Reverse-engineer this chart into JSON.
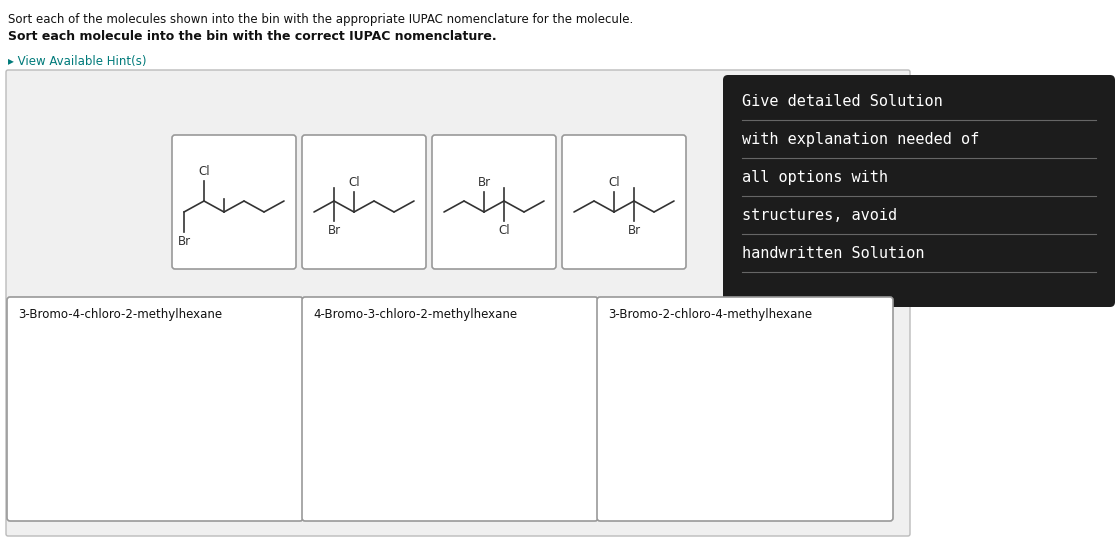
{
  "title_line1": "Sort each of the molecules shown into the bin with the appropriate IUPAC nomenclature for the molecule.",
  "title_line2": "Sort each molecule into the bin with the correct IUPAC nomenclature.",
  "hint_text": "▸ View Available Hint(s)",
  "hint_color": "#007a7a",
  "white": "#ffffff",
  "black": "#111111",
  "gray_bg": "#f0f0f0",
  "dark_box_bg": "#1c1c1c",
  "dark_box_text": "#ffffff",
  "dark_box_lines": [
    "Give detailed Solution",
    "with explanation needed of",
    "all options with",
    "structures, avoid",
    "handwritten Solution"
  ],
  "mol_cards": [
    {
      "top_label": "Cl",
      "bottom_label": "Br",
      "type": 0
    },
    {
      "top_label": "Cl",
      "bottom_label": "Br",
      "type": 1
    },
    {
      "top_label": "Br",
      "bottom_label": "Cl",
      "type": 2
    },
    {
      "top_label": "Cl",
      "bottom_label": "Br",
      "type": 3
    }
  ],
  "bin_labels": [
    "3-Bromo-4-chloro-2-methylhexane",
    "4-Bromo-3-chloro-2-methylhexane",
    "3-Bromo-2-chloro-4-methylhexane"
  ],
  "figsize": [
    11.18,
    5.44
  ],
  "dpi": 100
}
